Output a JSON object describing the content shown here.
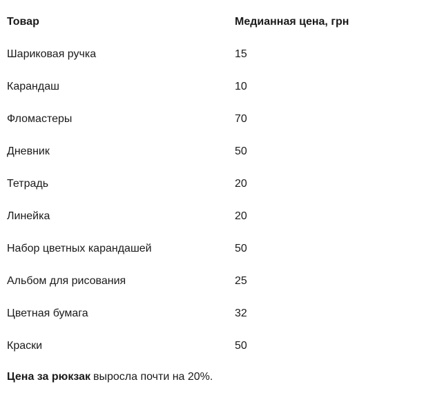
{
  "table": {
    "header": [
      "Товар",
      "Медианная цена, грн"
    ],
    "rows": [
      [
        "Шариковая ручка",
        15
      ],
      [
        "Карандаш",
        10
      ],
      [
        "Фломастеры",
        70
      ],
      [
        "Дневник",
        50
      ],
      [
        "Тетрадь",
        20
      ],
      [
        "Линейка",
        20
      ],
      [
        "Набор цветных карандашей",
        50
      ],
      [
        "Альбом для рисования",
        25
      ],
      [
        "Цветная бумага",
        32
      ],
      [
        "Краски",
        50
      ]
    ]
  },
  "note": {
    "bold": "Цена за рюкзак",
    "text": "выросла почти на 20%."
  }
}
